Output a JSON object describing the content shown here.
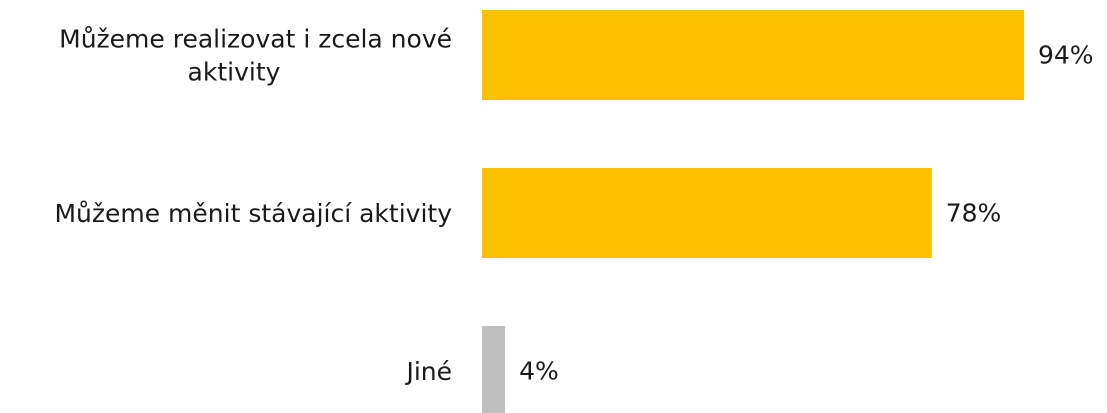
{
  "chart_data": {
    "type": "bar",
    "orientation": "horizontal",
    "title": "",
    "xlabel": "",
    "ylabel": "",
    "xlim": [
      0,
      100
    ],
    "grid": false,
    "legend": "none",
    "categories": [
      [
        "Můžeme realizovat i zcela nové",
        "aktivity"
      ],
      [
        "Můžeme měnit stávající aktivity"
      ],
      [
        "Jiné"
      ]
    ],
    "values": [
      94,
      78,
      4
    ],
    "value_labels": [
      "94%",
      "78%",
      "4%"
    ],
    "bar_colors": [
      "#FBC100",
      "#FBC100",
      "#BFBFBF"
    ]
  }
}
